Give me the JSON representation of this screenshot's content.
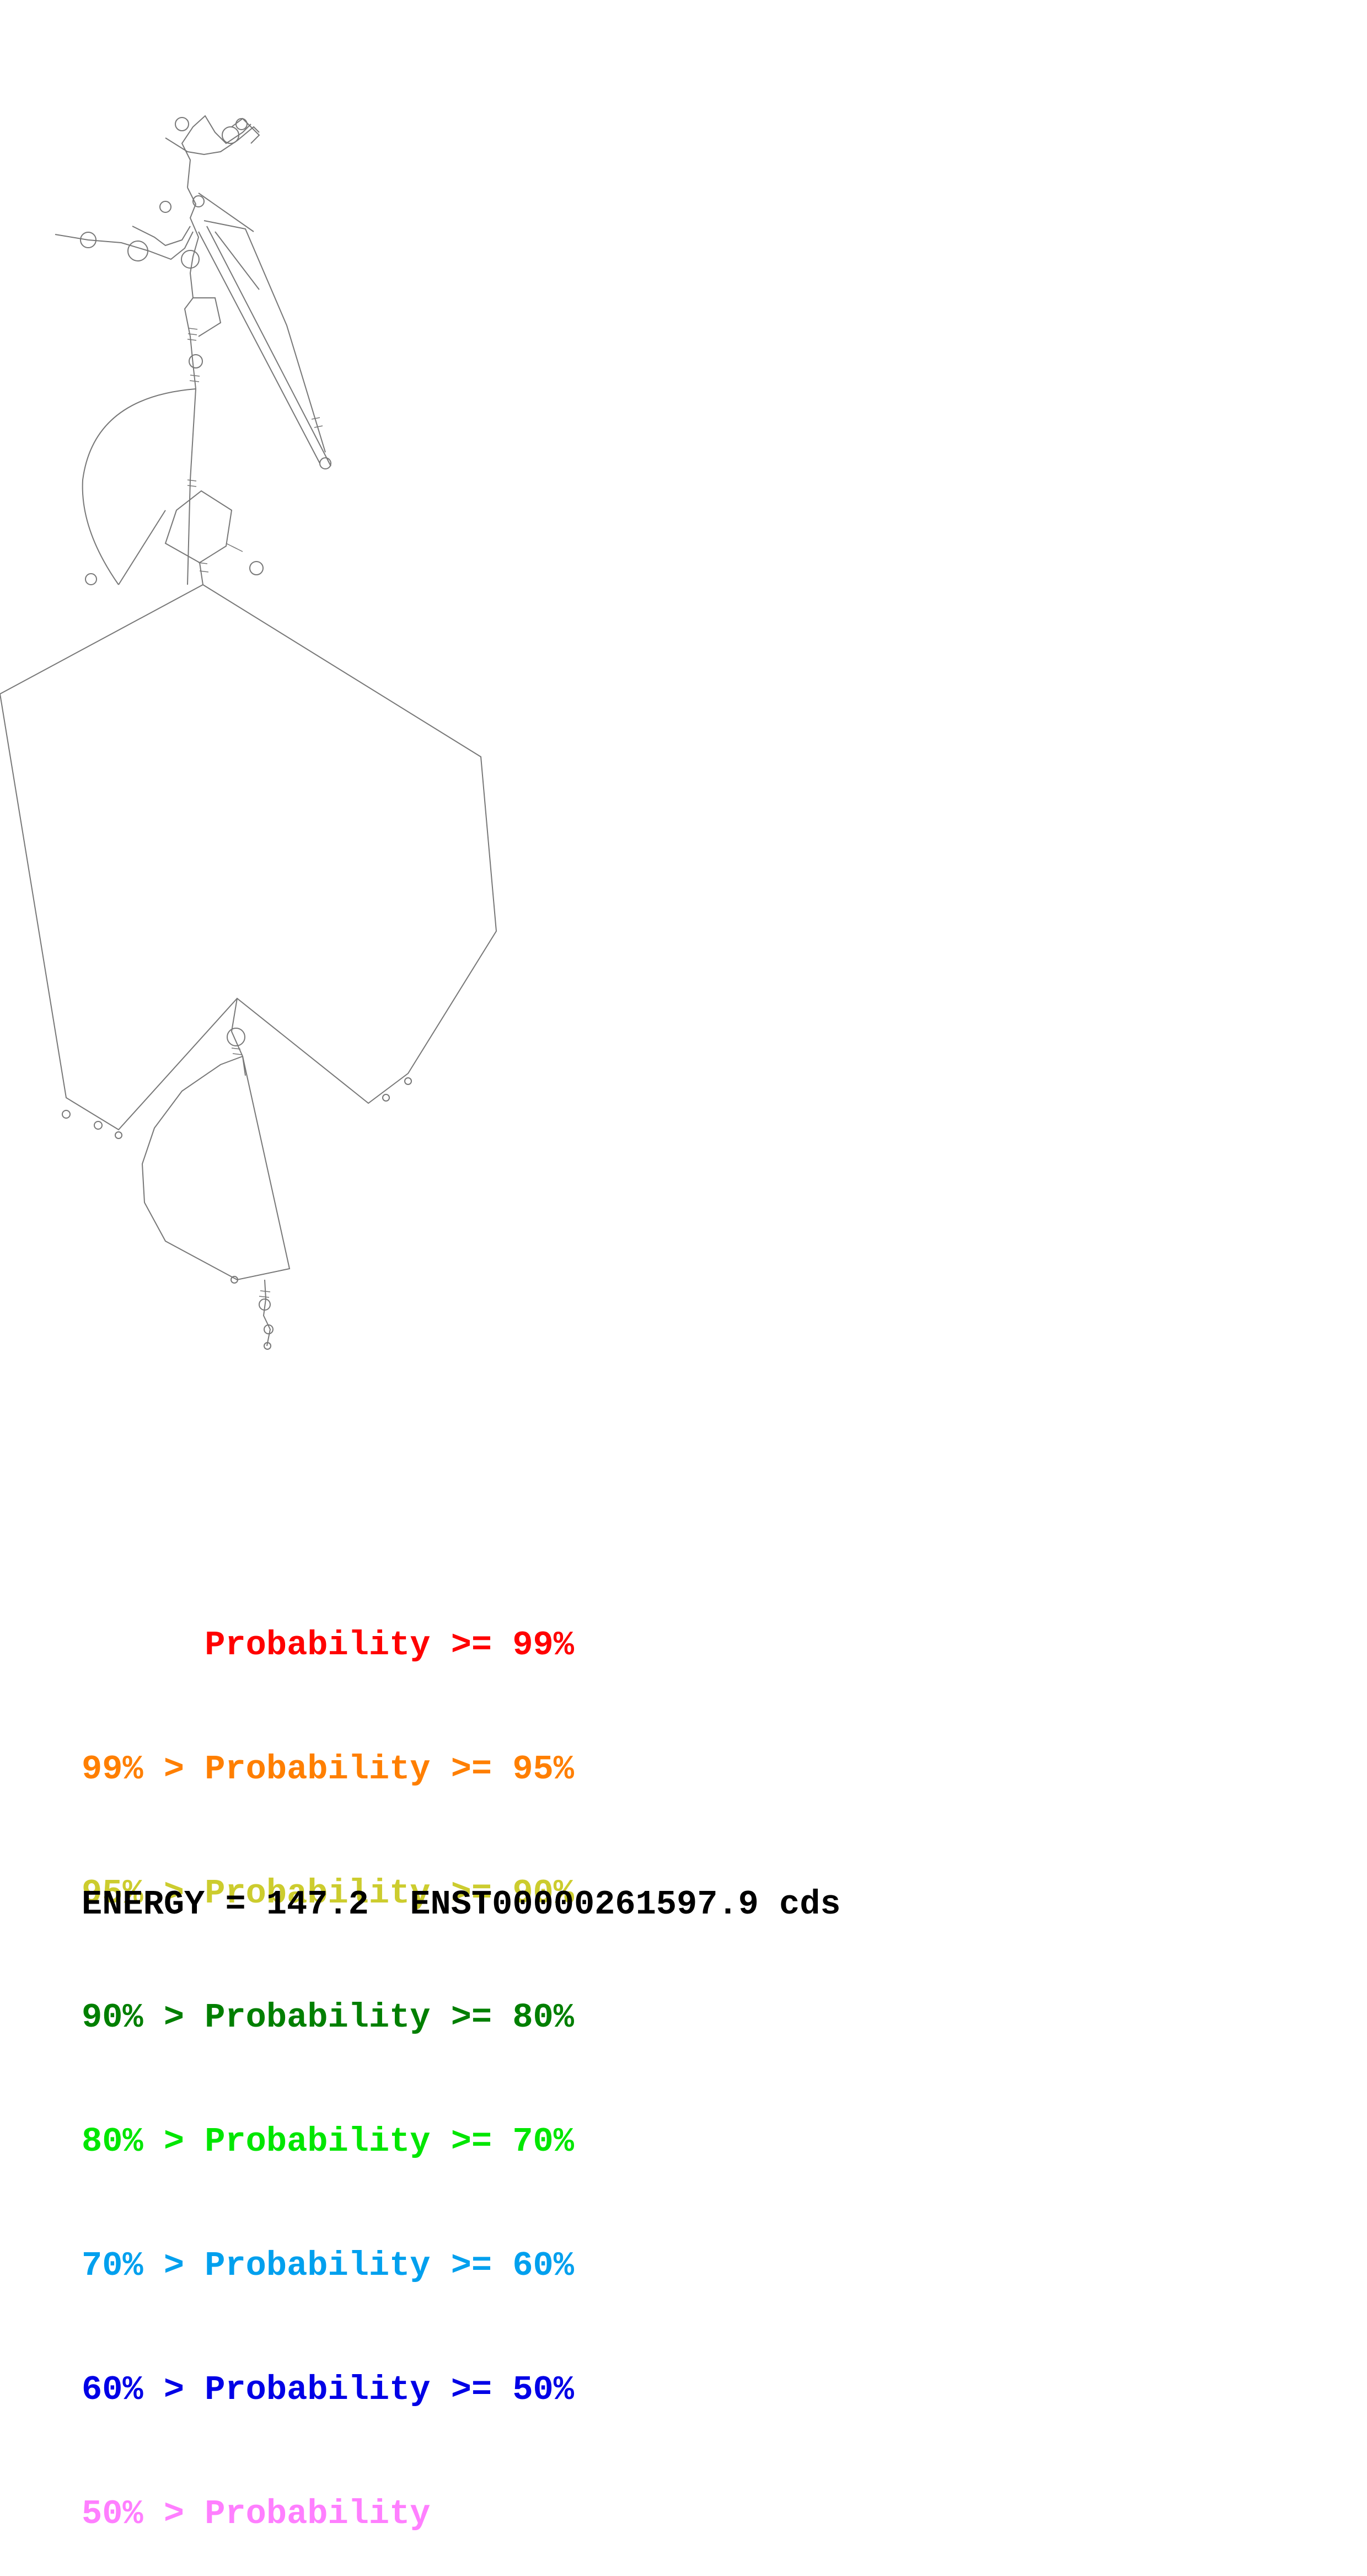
{
  "legend": [
    {
      "prefix": "",
      "label": "Probability >= 99%",
      "color": "#ff0000"
    },
    {
      "prefix": "99% > ",
      "label": "Probability >= 95%",
      "color": "#ff7f00"
    },
    {
      "prefix": "95% > ",
      "label": "Probability >= 90%",
      "color": "#cccc2e"
    },
    {
      "prefix": "90% > ",
      "label": "Probability >= 80%",
      "color": "#007f00"
    },
    {
      "prefix": "80% > ",
      "label": "Probability >= 70%",
      "color": "#00e600"
    },
    {
      "prefix": "70% > ",
      "label": "Probability >= 60%",
      "color": "#00a0ee"
    },
    {
      "prefix": "60% > ",
      "label": "Probability >= 50%",
      "color": "#0000e6"
    },
    {
      "prefix": "50% > ",
      "label": "Probability",
      "color": "#ff7fff"
    }
  ],
  "footer": {
    "energy": "ENERGY = 147.2",
    "transcript": "ENST00000261597.9 cds"
  },
  "structure_color": "#777777"
}
